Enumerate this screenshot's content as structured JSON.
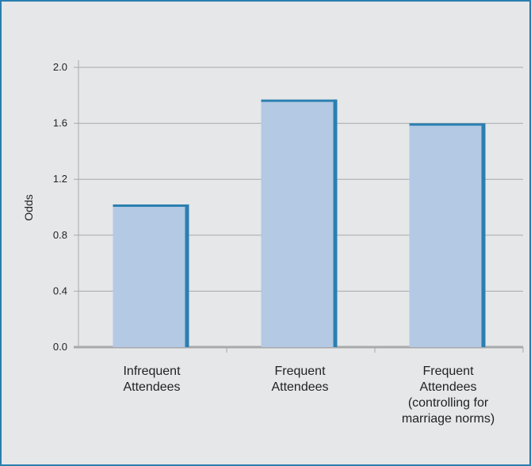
{
  "chart_data": {
    "type": "bar",
    "categories": [
      [
        "Infrequent",
        "Attendees"
      ],
      [
        "Frequent",
        "Attendees"
      ],
      [
        "Frequent",
        "Attendees",
        "(controlling for",
        "marriage norms)"
      ]
    ],
    "values": [
      1.02,
      1.77,
      1.6
    ],
    "ylabel": "Odds",
    "xlabel": "",
    "ylim": [
      0,
      2.0
    ],
    "yticks": [
      "0.0",
      "0.4",
      "0.8",
      "1.2",
      "1.6",
      "2.0"
    ],
    "grid": true,
    "colors": {
      "bar_fill": "#b3c9e4",
      "bar_edge": "#2a7fb0",
      "grid": "#a7a9ac",
      "axis": "#a7a9ac",
      "frame": "#2a7fb0",
      "background": "#e6e7e8"
    }
  }
}
